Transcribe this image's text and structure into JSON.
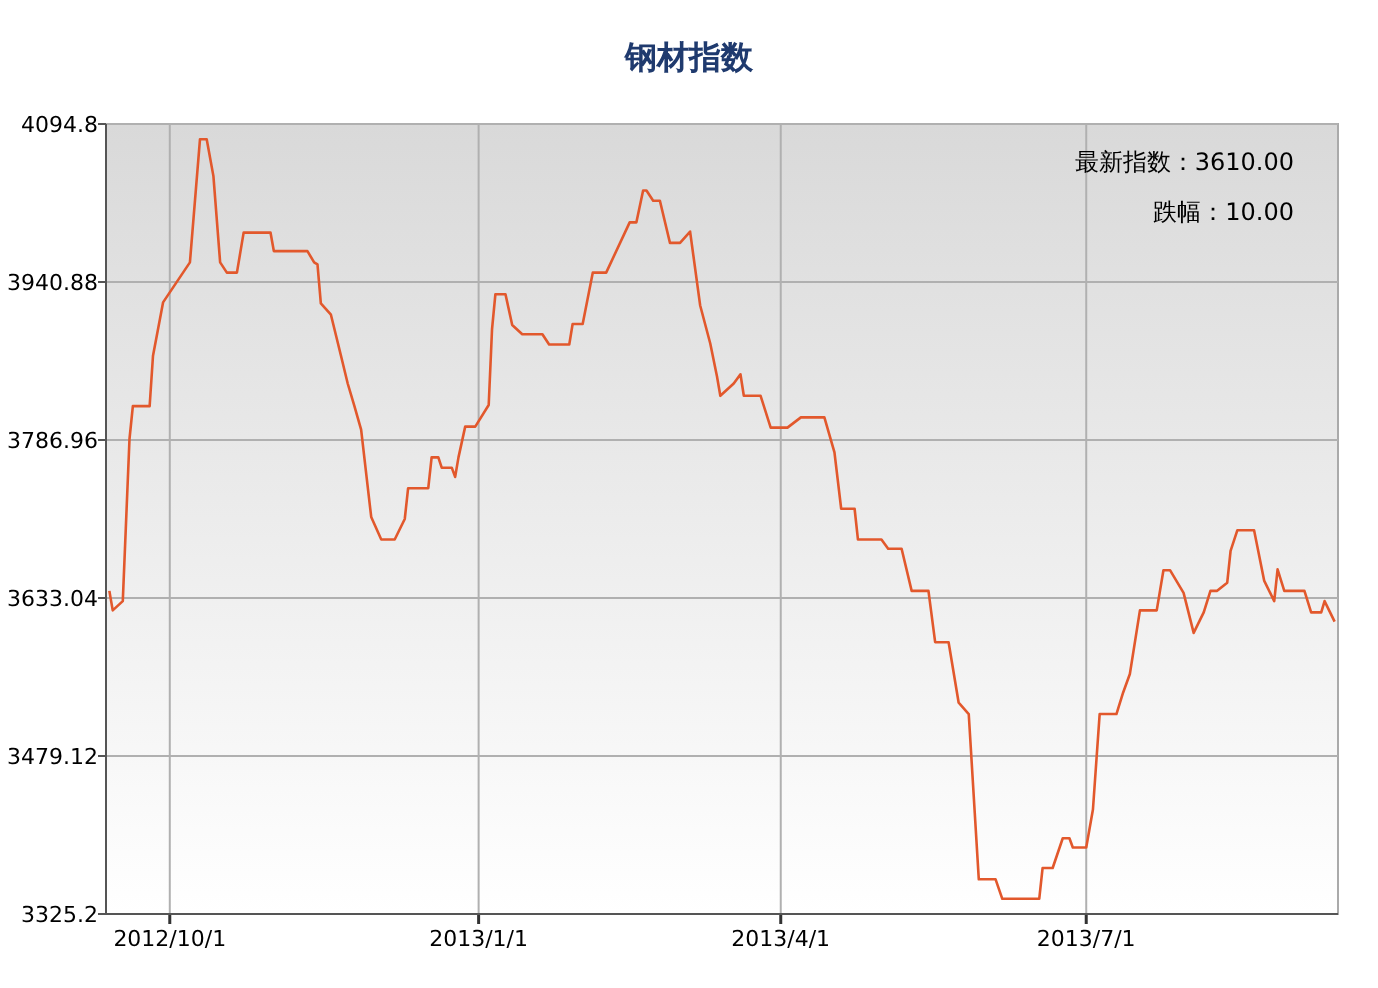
{
  "chart_data": {
    "type": "line",
    "title": "钢材指数",
    "x": [
      "2012-09-13",
      "2012-09-14",
      "2012-09-17",
      "2012-09-19",
      "2012-09-20",
      "2012-09-25",
      "2012-09-26",
      "2012-09-29",
      "2012-10-07",
      "2012-10-10",
      "2012-10-12",
      "2012-10-14",
      "2012-10-16",
      "2012-10-18",
      "2012-10-21",
      "2012-10-23",
      "2012-10-31",
      "2012-11-01",
      "2012-11-11",
      "2012-11-13",
      "2012-11-14",
      "2012-11-15",
      "2012-11-18",
      "2012-11-21",
      "2012-11-23",
      "2012-11-25",
      "2012-11-27",
      "2012-11-30",
      "2012-12-03",
      "2012-12-07",
      "2012-12-10",
      "2012-12-11",
      "2012-12-17",
      "2012-12-18",
      "2012-12-20",
      "2012-12-21",
      "2012-12-24",
      "2012-12-25",
      "2012-12-26",
      "2012-12-28",
      "2012-12-31",
      "2013-01-04",
      "2013-01-05",
      "2013-01-06",
      "2013-01-09",
      "2013-01-11",
      "2013-01-14",
      "2013-01-20",
      "2013-01-22",
      "2013-01-28",
      "2013-01-29",
      "2013-02-01",
      "2013-02-04",
      "2013-02-08",
      "2013-02-15",
      "2013-02-17",
      "2013-02-19",
      "2013-02-20",
      "2013-02-22",
      "2013-02-24",
      "2013-02-27",
      "2013-03-02",
      "2013-03-05",
      "2013-03-08",
      "2013-03-11",
      "2013-03-13",
      "2013-03-14",
      "2013-03-18",
      "2013-03-20",
      "2013-03-21",
      "2013-03-26",
      "2013-03-29",
      "2013-04-03",
      "2013-04-07",
      "2013-04-14",
      "2013-04-17",
      "2013-04-19",
      "2013-04-23",
      "2013-04-24",
      "2013-05-01",
      "2013-05-03",
      "2013-05-07",
      "2013-05-10",
      "2013-05-15",
      "2013-05-17",
      "2013-05-21",
      "2013-05-24",
      "2013-05-27",
      "2013-05-30",
      "2013-06-04",
      "2013-06-06",
      "2013-06-17",
      "2013-06-18",
      "2013-06-21",
      "2013-06-24",
      "2013-06-26",
      "2013-06-27",
      "2013-07-01",
      "2013-07-03",
      "2013-07-05",
      "2013-07-10",
      "2013-07-12",
      "2013-07-14",
      "2013-07-17",
      "2013-07-22",
      "2013-07-24",
      "2013-07-26",
      "2013-07-30",
      "2013-08-02",
      "2013-08-05",
      "2013-08-07",
      "2013-08-09",
      "2013-08-12",
      "2013-08-13",
      "2013-08-15",
      "2013-08-20",
      "2013-08-23",
      "2013-08-26",
      "2013-08-27",
      "2013-08-29",
      "2013-09-04",
      "2013-09-06",
      "2013-09-09",
      "2013-09-10",
      "2013-09-13"
    ],
    "values": [
      3640,
      3621,
      3630,
      3788,
      3820,
      3820,
      3869,
      3921,
      3960,
      4080,
      4080,
      4044,
      3960,
      3950,
      3950,
      3989,
      3989,
      3971,
      3971,
      3960,
      3958,
      3920,
      3909,
      3869,
      3842,
      3820,
      3797,
      3712,
      3690,
      3690,
      3710,
      3740,
      3740,
      3770,
      3770,
      3760,
      3760,
      3751,
      3770,
      3800,
      3800,
      3821,
      3895,
      3929,
      3929,
      3899,
      3890,
      3890,
      3880,
      3880,
      3900,
      3900,
      3950,
      3950,
      3999,
      3999,
      4030,
      4030,
      4020,
      4020,
      3979,
      3979,
      3990,
      3918,
      3881,
      3849,
      3830,
      3842,
      3851,
      3830,
      3830,
      3799,
      3799,
      3809,
      3809,
      3775,
      3720,
      3720,
      3690,
      3690,
      3681,
      3681,
      3640,
      3640,
      3590,
      3590,
      3531,
      3520,
      3359,
      3359,
      3340,
      3340,
      3370,
      3370,
      3399,
      3399,
      3390,
      3390,
      3427,
      3520,
      3520,
      3541,
      3559,
      3621,
      3621,
      3660,
      3660,
      3638,
      3599,
      3619,
      3640,
      3640,
      3648,
      3679,
      3699,
      3699,
      3650,
      3630,
      3661,
      3640,
      3640,
      3619,
      3619,
      3630,
      3610
    ],
    "color": "#e2582c",
    "xlim": [
      "2012-09-12",
      "2013-09-14"
    ],
    "xticks": [
      {
        "value": "2012-10-01",
        "label": "2012/10/1"
      },
      {
        "value": "2013-01-01",
        "label": "2013/1/1"
      },
      {
        "value": "2013-04-01",
        "label": "2013/4/1"
      },
      {
        "value": "2013-07-01",
        "label": "2013/7/1"
      }
    ],
    "ylim": [
      3325.2,
      4094.8
    ],
    "yticks": [
      3325.2,
      3479.12,
      3633.04,
      3786.96,
      3940.88,
      4094.8
    ],
    "grid": true,
    "annotations": [
      "最新指数：3610.00",
      "跌幅：10.00"
    ]
  }
}
